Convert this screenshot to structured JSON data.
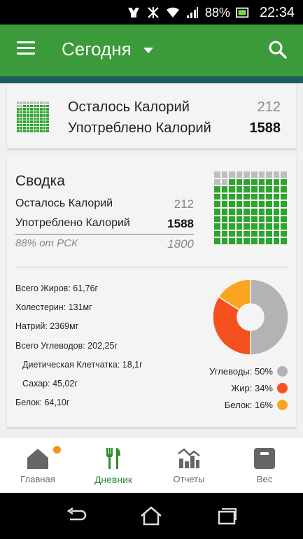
{
  "status_bar": {
    "battery_percent": "88%",
    "time": "22:34"
  },
  "app_bar": {
    "title": "Сегодня",
    "icons": [
      "menu-icon",
      "caret-down-icon",
      "search-icon"
    ]
  },
  "summary_card": {
    "remaining_label": "Осталось Калорий",
    "remaining_value": "212",
    "consumed_label": "Употреблено Калорий",
    "consumed_value": "1588",
    "fill_fraction": 0.88
  },
  "overview": {
    "heading": "Сводка",
    "remaining_label": "Осталось Калорий",
    "remaining_value": "212",
    "consumed_label": "Употреблено Калорий",
    "consumed_value": "1588",
    "percent_label": "88% от РСК",
    "goal_value": "1800",
    "fill_fraction": 0.88
  },
  "nutrients": {
    "fat": "Всего Жиров: 61,76г",
    "cholesterol": "Холестерин: 131мг",
    "sodium": "Натрий: 2369мг",
    "carbs": "Всего Углеводов: 202,25г",
    "fiber": "Диетическая Клетчатка: 18,1г",
    "sugar": "Сахар: 45,02г",
    "protein": "Белок: 64,10г"
  },
  "macro_chart": {
    "legend": [
      {
        "label": "Углеводы: 50%",
        "color": "#b3b3b3"
      },
      {
        "label": "Жир: 34%",
        "color": "#f4511e"
      },
      {
        "label": "Белок: 16%",
        "color": "#f9a51f"
      }
    ]
  },
  "chart_data": {
    "type": "pie",
    "categories": [
      "Углеводы",
      "Жир",
      "Белок"
    ],
    "values": [
      50,
      34,
      16
    ],
    "colors": [
      "#b3b3b3",
      "#f4511e",
      "#f9a51f"
    ],
    "donut": true
  },
  "bottom_nav": {
    "tabs": [
      {
        "label": "Главная",
        "icon": "home-icon",
        "active": false,
        "badge": true
      },
      {
        "label": "Дневник",
        "icon": "fork-knife-icon",
        "active": true,
        "badge": false
      },
      {
        "label": "Отчеты",
        "icon": "chart-icon",
        "active": false,
        "badge": false
      },
      {
        "label": "Вес",
        "icon": "scale-icon",
        "active": false,
        "badge": false
      }
    ]
  },
  "system_nav": {
    "icons": [
      "back-icon",
      "home-button-icon",
      "recents-icon"
    ]
  },
  "colors": {
    "primary": "#3b9b3b",
    "waffle_green": "#2da42d",
    "active_tab": "#2e8b2e",
    "badge": "#f39419"
  }
}
